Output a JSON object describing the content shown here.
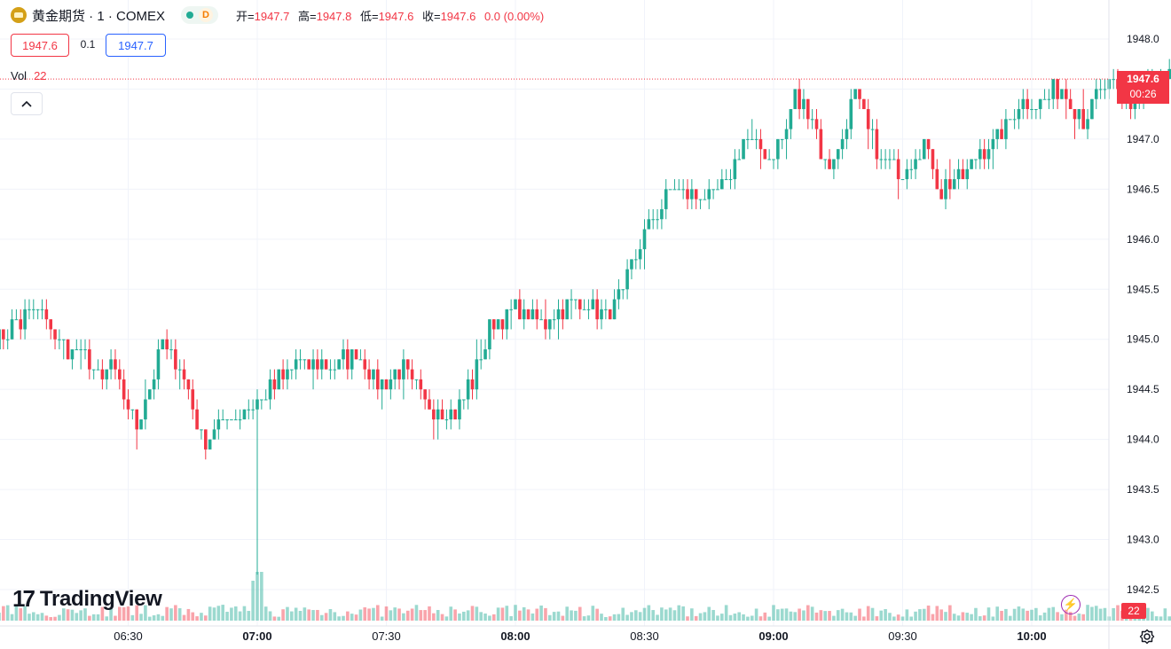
{
  "header": {
    "symbol": "黄金期货 · 1 · COMEX",
    "status_letter": "D",
    "open_label": "开=",
    "open": "1947.7",
    "high_label": "高=",
    "high": "1947.8",
    "low_label": "低=",
    "low": "1947.6",
    "close_label": "收=",
    "close": "1947.6",
    "change": "0.0 (0.00%)"
  },
  "trade": {
    "sell_price": "1947.6",
    "spread": "0.1",
    "buy_price": "1947.7"
  },
  "volume_legend": {
    "label": "Vol",
    "value": "22"
  },
  "collapse_button": "^",
  "logo": {
    "mark": "17",
    "text": "TradingView"
  },
  "price_scale": {
    "last_price": "1947.6",
    "countdown": "00:26",
    "volume_tag": "22"
  },
  "icons": {
    "settings": "gear-icon",
    "replay": "lightning-icon",
    "collapse": "chevron-up-icon",
    "coin": "gold-coin-icon"
  },
  "colors": {
    "up": "#22ab94",
    "down": "#f23645",
    "grid": "#f0f3fa",
    "text": "#131722"
  },
  "chart_data": {
    "type": "candlestick",
    "interval": "1",
    "ylim": [
      1942.4,
      1948.3
    ],
    "yticks": [
      "1948.0",
      "1947.5",
      "1947.0",
      "1946.5",
      "1946.0",
      "1945.5",
      "1945.0",
      "1944.5",
      "1944.0",
      "1943.5",
      "1943.0",
      "1942.5"
    ],
    "xtick_labels": [
      "06:30",
      "07:00",
      "07:30",
      "08:00",
      "08:30",
      "09:00",
      "09:30",
      "10:00"
    ],
    "xtick_bold": [
      false,
      true,
      false,
      true,
      false,
      true,
      false,
      true
    ],
    "xtick_minutes": [
      390,
      420,
      450,
      480,
      510,
      540,
      570,
      600
    ],
    "time_start_minutes": 359,
    "last_price": 1947.6,
    "keyframes": [
      [
        0,
        1945.0
      ],
      [
        10,
        1945.3
      ],
      [
        16,
        1944.95
      ],
      [
        20,
        1944.85
      ],
      [
        25,
        1944.55
      ],
      [
        27,
        1944.75
      ],
      [
        33,
        1944.15
      ],
      [
        39,
        1944.95
      ],
      [
        43,
        1944.75
      ],
      [
        48,
        1944.0
      ],
      [
        56,
        1944.25
      ],
      [
        63,
        1944.45
      ],
      [
        70,
        1944.75
      ],
      [
        75,
        1944.75
      ],
      [
        80,
        1944.75
      ],
      [
        84,
        1944.9
      ],
      [
        88,
        1944.6
      ],
      [
        90,
        1944.55
      ],
      [
        95,
        1944.7
      ],
      [
        100,
        1944.35
      ],
      [
        107,
        1944.25
      ],
      [
        111,
        1944.6
      ],
      [
        115,
        1945.1
      ],
      [
        121,
        1945.3
      ],
      [
        127,
        1945.15
      ],
      [
        133,
        1945.35
      ],
      [
        138,
        1945.35
      ],
      [
        142,
        1945.25
      ],
      [
        146,
        1945.45
      ],
      [
        150,
        1945.95
      ],
      [
        155,
        1946.35
      ],
      [
        158,
        1946.55
      ],
      [
        162,
        1946.45
      ],
      [
        166,
        1946.4
      ],
      [
        170,
        1946.55
      ],
      [
        174,
        1947.0
      ],
      [
        180,
        1946.85
      ],
      [
        184,
        1947.1
      ],
      [
        186,
        1947.4
      ],
      [
        190,
        1947.2
      ],
      [
        193,
        1946.75
      ],
      [
        196,
        1946.85
      ],
      [
        200,
        1947.45
      ],
      [
        203,
        1947.1
      ],
      [
        206,
        1946.75
      ],
      [
        211,
        1946.7
      ],
      [
        216,
        1946.95
      ],
      [
        220,
        1946.5
      ],
      [
        225,
        1946.65
      ],
      [
        229,
        1946.9
      ],
      [
        233,
        1947.0
      ],
      [
        238,
        1947.4
      ],
      [
        243,
        1947.35
      ],
      [
        248,
        1947.55
      ],
      [
        253,
        1947.2
      ],
      [
        258,
        1947.55
      ],
      [
        263,
        1947.35
      ],
      [
        268,
        1947.5
      ],
      [
        271,
        1947.55
      ],
      [
        275,
        1947.6
      ]
    ],
    "volume_note": "Volume bars under each candle; last bar volume 22"
  }
}
